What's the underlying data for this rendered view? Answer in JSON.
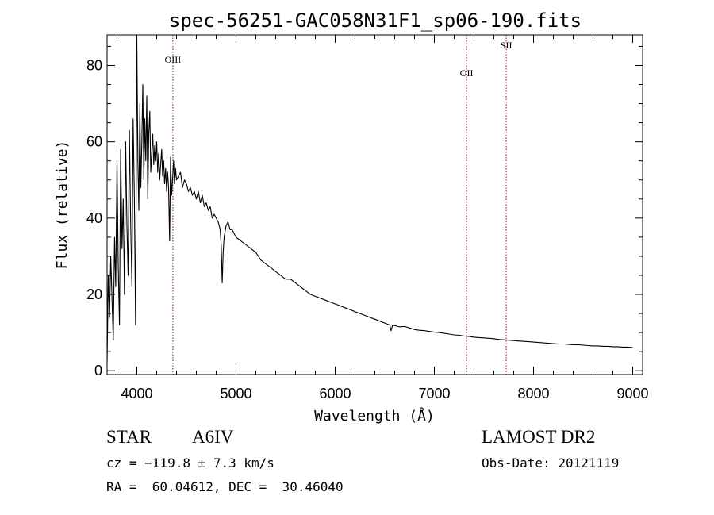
{
  "chart_data": {
    "type": "line",
    "title": "spec-56251-GAC058N31F1_sp06-190.fits",
    "xlabel": "Wavelength (Å)",
    "ylabel": "Flux (relative)",
    "xlim": [
      3700,
      9100
    ],
    "ylim": [
      -1,
      88
    ],
    "xticks": [
      4000,
      5000,
      6000,
      7000,
      8000,
      9000
    ],
    "yticks": [
      0,
      20,
      40,
      60,
      80
    ],
    "line_color": "#000000",
    "marker_color": "#8b1a1a",
    "series": [
      {
        "x": [
          3700,
          3712,
          3725,
          3737,
          3750,
          3762,
          3775,
          3787,
          3800,
          3812,
          3825,
          3837,
          3850,
          3862,
          3875,
          3887,
          3900,
          3912,
          3925,
          3937,
          3950,
          3962,
          3975,
          3987,
          4000,
          4010,
          4020,
          4030,
          4040,
          4050,
          4060,
          4070,
          4080,
          4090,
          4100,
          4110,
          4120,
          4130,
          4140,
          4150,
          4160,
          4170,
          4180,
          4190,
          4200,
          4210,
          4220,
          4230,
          4240,
          4250,
          4260,
          4270,
          4280,
          4290,
          4300,
          4310,
          4320,
          4330,
          4340,
          4350,
          4360,
          4370,
          4380,
          4390,
          4400,
          4420,
          4440,
          4460,
          4480,
          4500,
          4520,
          4540,
          4560,
          4580,
          4600,
          4620,
          4640,
          4660,
          4680,
          4700,
          4720,
          4740,
          4760,
          4780,
          4800,
          4820,
          4840,
          4850,
          4861,
          4870,
          4880,
          4900,
          4920,
          4940,
          4960,
          4980,
          5000,
          5050,
          5100,
          5150,
          5200,
          5250,
          5300,
          5350,
          5400,
          5450,
          5500,
          5550,
          5600,
          5650,
          5700,
          5750,
          5800,
          5850,
          5900,
          5950,
          6000,
          6050,
          6100,
          6150,
          6200,
          6250,
          6300,
          6350,
          6400,
          6450,
          6500,
          6550,
          6563,
          6580,
          6600,
          6650,
          6700,
          6750,
          6800,
          6850,
          6900,
          6950,
          7000,
          7050,
          7100,
          7150,
          7200,
          7250,
          7300,
          7350,
          7400,
          7450,
          7500,
          7550,
          7600,
          7650,
          7700,
          7750,
          7800,
          7850,
          7900,
          7950,
          8000,
          8050,
          8100,
          8150,
          8200,
          8250,
          8300,
          8350,
          8400,
          8450,
          8500,
          8550,
          8600,
          8650,
          8700,
          8750,
          8800,
          8850,
          8900,
          8950,
          9000
        ],
        "y": [
          2,
          25,
          14,
          30,
          18,
          8,
          35,
          22,
          55,
          28,
          12,
          58,
          32,
          45,
          20,
          60,
          38,
          25,
          63,
          40,
          22,
          66,
          45,
          12,
          87,
          55,
          42,
          70,
          48,
          60,
          75,
          50,
          66,
          55,
          72,
          45,
          62,
          68,
          52,
          57,
          62,
          54,
          59,
          55,
          60,
          52,
          57,
          50,
          54,
          58,
          51,
          55,
          49,
          53,
          47,
          52,
          48,
          34,
          56,
          46,
          50,
          55,
          49,
          53,
          50,
          51,
          52,
          48,
          50,
          49,
          47,
          48,
          46,
          47,
          45,
          47,
          44,
          46,
          43,
          44,
          42,
          43,
          40,
          41,
          40,
          39,
          37,
          33,
          23,
          31,
          35,
          38,
          39,
          37,
          37,
          36,
          35,
          34,
          33,
          32,
          31,
          29,
          28,
          27,
          26,
          25,
          24,
          24,
          23,
          22,
          21,
          20,
          19.5,
          19,
          18.5,
          18,
          17.5,
          17,
          16.5,
          16,
          15.5,
          15,
          14.5,
          14,
          13.5,
          13,
          12.5,
          12,
          10.5,
          12,
          11.8,
          11.5,
          11.6,
          11.2,
          10.8,
          10.6,
          10.5,
          10.3,
          10.1,
          10,
          9.8,
          9.6,
          9.4,
          9.3,
          9.1,
          9,
          8.8,
          8.7,
          8.6,
          8.5,
          8.4,
          8.2,
          8.1,
          8,
          7.9,
          7.8,
          7.7,
          7.6,
          7.5,
          7.4,
          7.3,
          7.2,
          7.1,
          7,
          7,
          6.9,
          6.8,
          6.8,
          6.7,
          6.6,
          6.5,
          6.5,
          6.4,
          6.4,
          6.3,
          6.3,
          6.2,
          6.2,
          6.1
        ]
      }
    ],
    "line_markers": [
      {
        "label": "OIII",
        "x": 4363
      },
      {
        "label": "OII",
        "x": 7325
      },
      {
        "label": "SII",
        "x": 7725
      }
    ]
  },
  "info": {
    "object_class": "STAR",
    "subclass": "A6IV",
    "survey": "LAMOST DR2",
    "redshift_text": "cz = −119.8 ± 7.3 km/s",
    "obs_date_text": "Obs-Date: 20121119",
    "coords_text": "RA =  60.04612, DEC =  30.46040"
  }
}
